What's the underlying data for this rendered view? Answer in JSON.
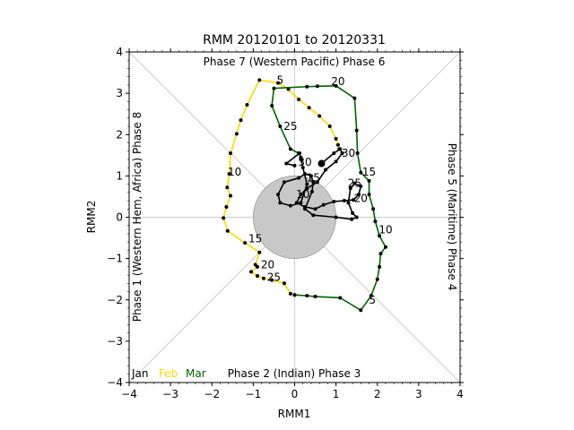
{
  "chart_data": {
    "type": "line",
    "title": "RMM 20120101 to 20120331",
    "xlabel": "RMM1",
    "ylabel": "RMM2",
    "xlim": [
      -4,
      4
    ],
    "ylim": [
      -4,
      4
    ],
    "xticks": [
      -4,
      -3,
      -2,
      -1,
      0,
      1,
      2,
      3,
      4
    ],
    "yticks": [
      -4,
      -3,
      -2,
      -1,
      0,
      1,
      2,
      3,
      4
    ],
    "phase_labels": {
      "top": "Phase 7 (Western Pacific) Phase 6",
      "bottom": "Phase 2 (Indian) Phase 3",
      "left": "Phase 1 (Western Hem, Africa) Phase 8",
      "right": "Phase 5 (Maritime) Phase 4"
    },
    "unit_circle_radius": 1,
    "colors": {
      "Jan": "#000000",
      "Feb": "#FFD700",
      "Mar": "#006400",
      "circle_fill": "#c8c8c8",
      "circle_edge": "#999999",
      "guide": "#bbbbbb"
    },
    "legend": [
      {
        "name": "Jan",
        "color": "#000000"
      },
      {
        "name": "Feb",
        "color": "#FFD700"
      },
      {
        "name": "Mar",
        "color": "#006400"
      }
    ],
    "series": [
      {
        "name": "Jan",
        "points": [
          [
            0.65,
            1.3
          ],
          [
            0.95,
            1.55
          ],
          [
            1.1,
            1.65
          ],
          [
            1.15,
            1.55
          ],
          [
            1.0,
            1.35
          ],
          [
            0.75,
            1.15
          ],
          [
            0.55,
            0.85
          ],
          [
            0.3,
            0.7
          ],
          [
            0.15,
            0.55
          ],
          [
            0.05,
            0.35
          ],
          [
            0.25,
            0.25
          ],
          [
            0.5,
            0.2
          ],
          [
            0.7,
            0.3
          ],
          [
            0.95,
            0.38
          ],
          [
            1.2,
            0.4
          ],
          [
            1.42,
            0.42
          ],
          [
            1.55,
            0.55
          ],
          [
            1.6,
            0.75
          ],
          [
            1.45,
            0.82
          ],
          [
            1.35,
            0.7
          ],
          [
            1.3,
            0.35
          ],
          [
            1.4,
            0.1
          ],
          [
            1.5,
            0.0
          ],
          [
            1.38,
            -0.05
          ],
          [
            1.0,
            0.0
          ],
          [
            0.45,
            0.05
          ],
          [
            0.25,
            0.2
          ],
          [
            0.42,
            0.62
          ],
          [
            0.45,
            0.85
          ],
          [
            0.4,
            1.0
          ],
          [
            0.25,
            1.05
          ],
          [
            0.1,
            0.95
          ],
          [
            -0.25,
            0.85
          ],
          [
            -0.4,
            0.55
          ],
          [
            -0.35,
            0.35
          ],
          [
            -0.1,
            0.28
          ],
          [
            0.15,
            0.35
          ],
          [
            0.3,
            0.8
          ],
          [
            0.2,
            1.2
          ],
          [
            0.15,
            1.4
          ],
          [
            0.12,
            1.55
          ],
          [
            -0.2,
            1.3
          ],
          [
            0.0,
            1.25
          ]
        ]
      },
      {
        "name": "Feb",
        "points": [
          [
            1.08,
            1.65
          ],
          [
            1.05,
            1.75
          ],
          [
            1.0,
            1.9
          ],
          [
            0.85,
            2.2
          ],
          [
            0.6,
            2.45
          ],
          [
            0.35,
            2.65
          ],
          [
            0.1,
            2.85
          ],
          [
            -0.15,
            3.1
          ],
          [
            -0.4,
            3.25
          ],
          [
            -0.85,
            3.32
          ],
          [
            -1.15,
            2.72
          ],
          [
            -1.3,
            2.35
          ],
          [
            -1.4,
            2.02
          ],
          [
            -1.55,
            1.55
          ],
          [
            -1.58,
            1.05
          ],
          [
            -1.63,
            0.72
          ],
          [
            -1.55,
            0.52
          ],
          [
            -1.65,
            0.25
          ],
          [
            -1.72,
            -0.02
          ],
          [
            -1.62,
            -0.33
          ],
          [
            -1.2,
            -0.62
          ],
          [
            -0.85,
            -0.85
          ],
          [
            -0.95,
            -1.15
          ],
          [
            -0.9,
            -1.2
          ],
          [
            -1.05,
            -1.32
          ],
          [
            -0.9,
            -1.42
          ],
          [
            -0.75,
            -1.48
          ],
          [
            -0.55,
            -1.52
          ],
          [
            -0.25,
            -1.6
          ],
          [
            -0.1,
            -1.85
          ],
          [
            0.0,
            -1.88
          ]
        ]
      },
      {
        "name": "Mar",
        "points": [
          [
            0.0,
            -1.88
          ],
          [
            0.3,
            -1.9
          ],
          [
            0.5,
            -1.92
          ],
          [
            1.1,
            -1.95
          ],
          [
            1.6,
            -2.25
          ],
          [
            1.85,
            -1.9
          ],
          [
            2.0,
            -1.5
          ],
          [
            2.05,
            -1.2
          ],
          [
            2.08,
            -0.88
          ],
          [
            2.2,
            -0.72
          ],
          [
            2.05,
            -0.45
          ],
          [
            1.95,
            -0.1
          ],
          [
            1.9,
            0.2
          ],
          [
            1.8,
            0.55
          ],
          [
            1.8,
            0.88
          ],
          [
            1.6,
            1.08
          ],
          [
            1.52,
            1.55
          ],
          [
            1.5,
            2.1
          ],
          [
            1.45,
            2.88
          ],
          [
            1.0,
            3.18
          ],
          [
            0.55,
            3.17
          ],
          [
            0.3,
            3.16
          ],
          [
            -0.5,
            3.12
          ],
          [
            -0.55,
            2.7
          ],
          [
            -0.35,
            2.2
          ],
          [
            -0.1,
            1.65
          ],
          [
            0.1,
            1.55
          ],
          [
            0.15,
            1.45
          ]
        ]
      }
    ],
    "day_labels": [
      {
        "text": "5",
        "x": -0.35,
        "y": 3.32
      },
      {
        "text": "20",
        "x": 1.05,
        "y": 3.28
      },
      {
        "text": "25",
        "x": -0.1,
        "y": 2.2
      },
      {
        "text": "30",
        "x": 1.3,
        "y": 1.55
      },
      {
        "text": "30",
        "x": 0.25,
        "y": 1.33
      },
      {
        "text": "15",
        "x": 1.8,
        "y": 1.1
      },
      {
        "text": "15",
        "x": 0.45,
        "y": 0.95
      },
      {
        "text": "25",
        "x": 1.45,
        "y": 0.82
      },
      {
        "text": "10",
        "x": 0.2,
        "y": 0.55
      },
      {
        "text": "20",
        "x": 1.6,
        "y": 0.45
      },
      {
        "text": "10",
        "x": -1.45,
        "y": 1.1
      },
      {
        "text": "10",
        "x": 2.2,
        "y": -0.3
      },
      {
        "text": "15",
        "x": -0.95,
        "y": -0.52
      },
      {
        "text": "20",
        "x": -0.65,
        "y": -1.15
      },
      {
        "text": "25",
        "x": -0.5,
        "y": -1.45
      },
      {
        "text": "5",
        "x": 1.88,
        "y": -2.0
      }
    ],
    "large_marker": [
      0.65,
      1.3
    ]
  }
}
